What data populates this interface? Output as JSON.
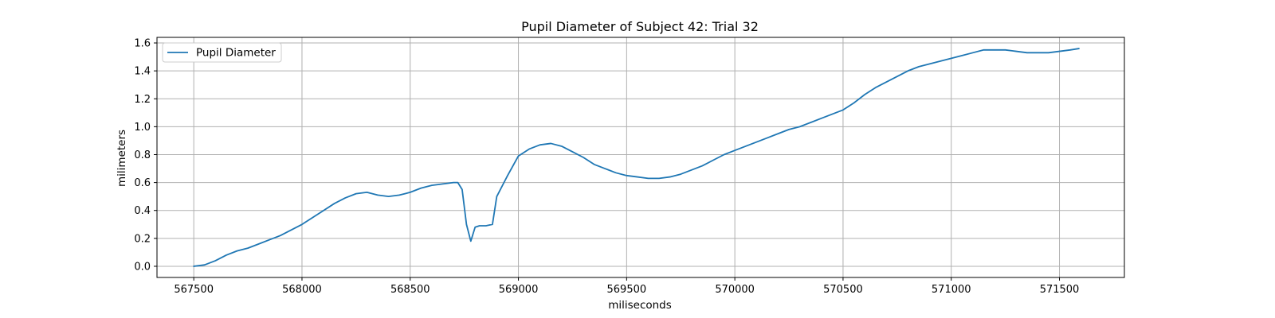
{
  "chart_data": {
    "type": "line",
    "title": "Pupil Diameter of Subject 42: Trial 32",
    "xlabel": "miliseconds",
    "ylabel": "milimeters",
    "xlim": [
      567330,
      571800
    ],
    "ylim": [
      -0.08,
      1.64
    ],
    "xticks": [
      567500,
      568000,
      568500,
      569000,
      569500,
      570000,
      570500,
      571000,
      571500
    ],
    "yticks": [
      0.0,
      0.2,
      0.4,
      0.6,
      0.8,
      1.0,
      1.2,
      1.4,
      1.6
    ],
    "ytick_labels": [
      "0.0",
      "0.2",
      "0.4",
      "0.6",
      "0.8",
      "1.0",
      "1.2",
      "1.4",
      "1.6"
    ],
    "grid": true,
    "legend_position": "top-left",
    "colors": {
      "line": "#1f77b4",
      "grid": "#b0b0b0",
      "axes": "#000000"
    },
    "series": [
      {
        "name": "Pupil Diameter",
        "x": [
          567500,
          567550,
          567600,
          567650,
          567700,
          567750,
          567800,
          567850,
          567900,
          567950,
          568000,
          568050,
          568100,
          568150,
          568200,
          568250,
          568300,
          568350,
          568400,
          568450,
          568500,
          568550,
          568600,
          568650,
          568700,
          568720,
          568740,
          568760,
          568780,
          568800,
          568820,
          568850,
          568880,
          568900,
          568950,
          569000,
          569050,
          569100,
          569150,
          569200,
          569250,
          569300,
          569350,
          569400,
          569450,
          569500,
          569550,
          569600,
          569650,
          569700,
          569750,
          569800,
          569850,
          569900,
          569950,
          570000,
          570050,
          570100,
          570150,
          570200,
          570250,
          570300,
          570350,
          570400,
          570450,
          570500,
          570550,
          570600,
          570650,
          570700,
          570750,
          570800,
          570850,
          570900,
          570950,
          571000,
          571050,
          571100,
          571150,
          571200,
          571250,
          571300,
          571350,
          571400,
          571450,
          571500,
          571550,
          571590
        ],
        "y": [
          0.0,
          0.01,
          0.04,
          0.08,
          0.11,
          0.13,
          0.16,
          0.19,
          0.22,
          0.26,
          0.3,
          0.35,
          0.4,
          0.45,
          0.49,
          0.52,
          0.53,
          0.51,
          0.5,
          0.51,
          0.53,
          0.56,
          0.58,
          0.59,
          0.6,
          0.6,
          0.55,
          0.3,
          0.18,
          0.28,
          0.29,
          0.29,
          0.3,
          0.5,
          0.65,
          0.79,
          0.84,
          0.87,
          0.88,
          0.86,
          0.82,
          0.78,
          0.73,
          0.7,
          0.67,
          0.65,
          0.64,
          0.63,
          0.63,
          0.64,
          0.66,
          0.69,
          0.72,
          0.76,
          0.8,
          0.83,
          0.86,
          0.89,
          0.92,
          0.95,
          0.98,
          1.0,
          1.03,
          1.06,
          1.09,
          1.12,
          1.17,
          1.23,
          1.28,
          1.32,
          1.36,
          1.4,
          1.43,
          1.45,
          1.47,
          1.49,
          1.51,
          1.53,
          1.55,
          1.55,
          1.55,
          1.54,
          1.53,
          1.53,
          1.53,
          1.54,
          1.55,
          1.56
        ]
      }
    ]
  }
}
